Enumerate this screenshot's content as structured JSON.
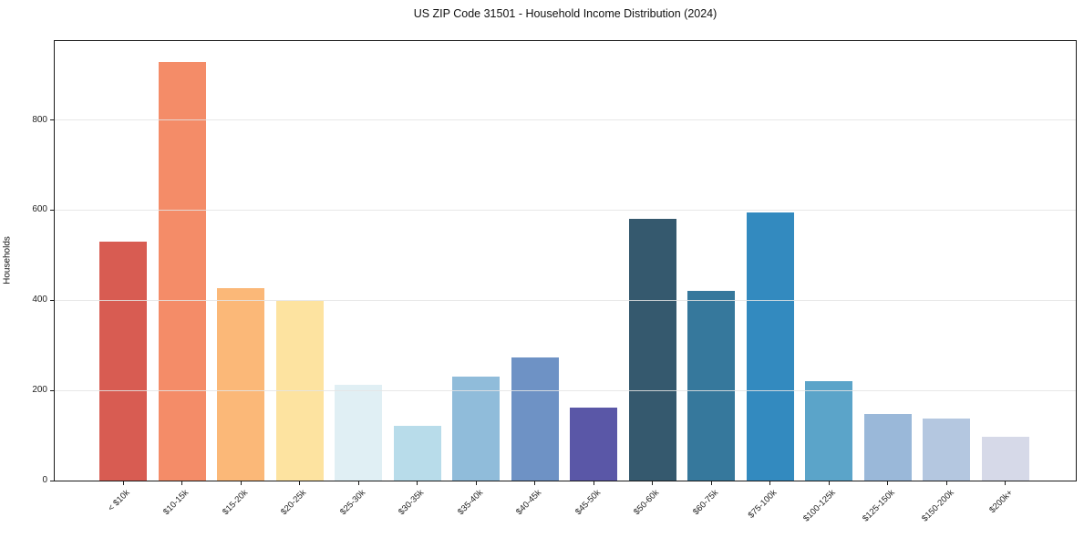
{
  "chart_data": {
    "type": "bar",
    "title": "US ZIP Code 31501 - Household Income Distribution (2024)",
    "xlabel": "",
    "ylabel": "Households",
    "categories": [
      "< $10k",
      "$10-15k",
      "$15-20k",
      "$20-25k",
      "$25-30k",
      "$30-35k",
      "$35-40k",
      "$40-45k",
      "$45-50k",
      "$50-60k",
      "$60-75k",
      "$75-100k",
      "$100-125k",
      "$125-150k",
      "$150-200k",
      "$200k+"
    ],
    "values": [
      530,
      929,
      426,
      398,
      212,
      121,
      231,
      274,
      162,
      581,
      420,
      594,
      220,
      147,
      137,
      97
    ],
    "bar_colors": [
      "#d85c52",
      "#f48c68",
      "#fbb878",
      "#fde3a0",
      "#e0eff4",
      "#b8dcea",
      "#90bcda",
      "#6e92c5",
      "#5a57a7",
      "#35596e",
      "#36789c",
      "#338abf",
      "#5ba4c9",
      "#9ab8d9",
      "#b4c7e0",
      "#d6d9e8"
    ],
    "yticks": [
      0,
      200,
      400,
      600,
      800
    ],
    "ylim": [
      0,
      975
    ],
    "grid": true,
    "grid_axis": "y",
    "legend": false,
    "x_tick_rotation_deg": 45
  },
  "colors": {
    "background": "#ffffff",
    "axis_frame": "#1a1a1a",
    "gridline": "#e4e4e4",
    "tick_text": "#222222",
    "title_text": "#111111"
  }
}
